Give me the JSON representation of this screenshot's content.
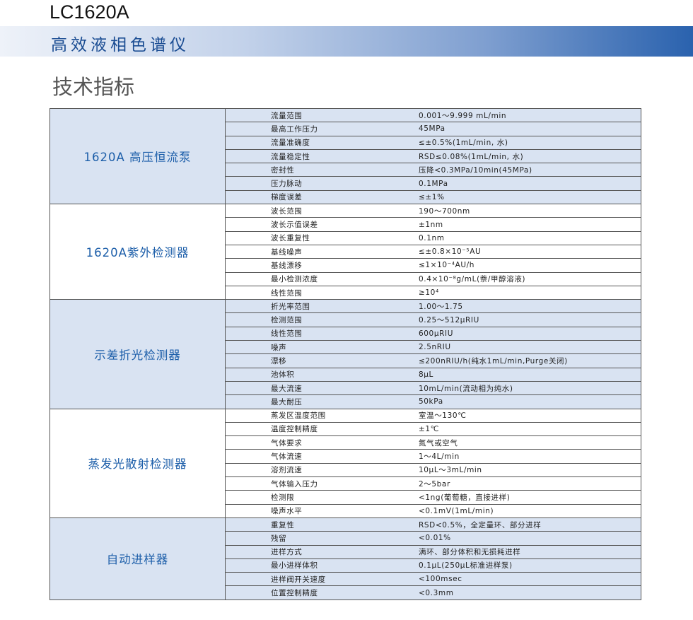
{
  "header": {
    "model": "LC1620A",
    "subtitle": "高效液相色谱仪"
  },
  "heading": "技术指标",
  "sections": [
    {
      "name": "1620A 高压恒流泵",
      "rows": [
        [
          "流量范围",
          "0.001～9.999 mL/min"
        ],
        [
          "最高工作压力",
          "45MPa"
        ],
        [
          "流量准确度",
          "≤±0.5%(1mL/min, 水)"
        ],
        [
          "流量稳定性",
          "RSD≤0.08%(1mL/min, 水)"
        ],
        [
          "密封性",
          "压降<0.3MPa/10min(45MPa)"
        ],
        [
          "压力脉动",
          "0.1MPa"
        ],
        [
          "梯度误差",
          "≤±1%"
        ]
      ]
    },
    {
      "name": "1620A紫外检测器",
      "rows": [
        [
          "波长范围",
          "190～700nm"
        ],
        [
          "波长示值误差",
          "±1nm"
        ],
        [
          "波长重复性",
          "0.1nm"
        ],
        [
          "基线噪声",
          "≤±0.8×10⁻⁵AU"
        ],
        [
          "基线漂移",
          "≤1×10⁻⁴AU/h"
        ],
        [
          "最小检测浓度",
          "0.4×10⁻⁸g/mL(萘/甲醇溶液)"
        ],
        [
          "线性范围",
          "≥10⁴"
        ]
      ]
    },
    {
      "name": "示差折光检测器",
      "rows": [
        [
          "折光率范围",
          "1.00～1.75"
        ],
        [
          "检测范围",
          "0.25～512μRIU"
        ],
        [
          "线性范围",
          "600μRIU"
        ],
        [
          "噪声",
          "2.5nRIU"
        ],
        [
          "漂移",
          "≤200nRIU/h(纯水1mL/min,Purge关闭)"
        ],
        [
          "池体积",
          "8μL"
        ],
        [
          "最大流速",
          "10mL/min(流动相为纯水)"
        ],
        [
          "最大耐压",
          "50kPa"
        ]
      ]
    },
    {
      "name": "蒸发光散射检测器",
      "rows": [
        [
          "蒸发区温度范围",
          "室温～130℃"
        ],
        [
          "温度控制精度",
          "±1℃"
        ],
        [
          "气体要求",
          "氮气或空气"
        ],
        [
          "气体流速",
          "1～4L/min"
        ],
        [
          "溶剂流速",
          "10μL～3mL/min"
        ],
        [
          "气体输入压力",
          "2～5bar"
        ],
        [
          "检测限",
          "<1ng(葡萄糖，直接进样)"
        ],
        [
          "噪声水平",
          "<0.1mV(1mL/min)"
        ]
      ]
    },
    {
      "name": "自动进样器",
      "rows": [
        [
          "重复性",
          "RSD<0.5%，全定量环、部分进样"
        ],
        [
          "残留",
          "<0.01%"
        ],
        [
          "进样方式",
          "满环、部分体积和无损耗进样"
        ],
        [
          "最小进样体积",
          "0.1μL(250μL标准进样泵)"
        ],
        [
          "进样阀开关速度",
          "<100msec"
        ],
        [
          "位置控制精度",
          "<0.3mm"
        ]
      ]
    }
  ]
}
